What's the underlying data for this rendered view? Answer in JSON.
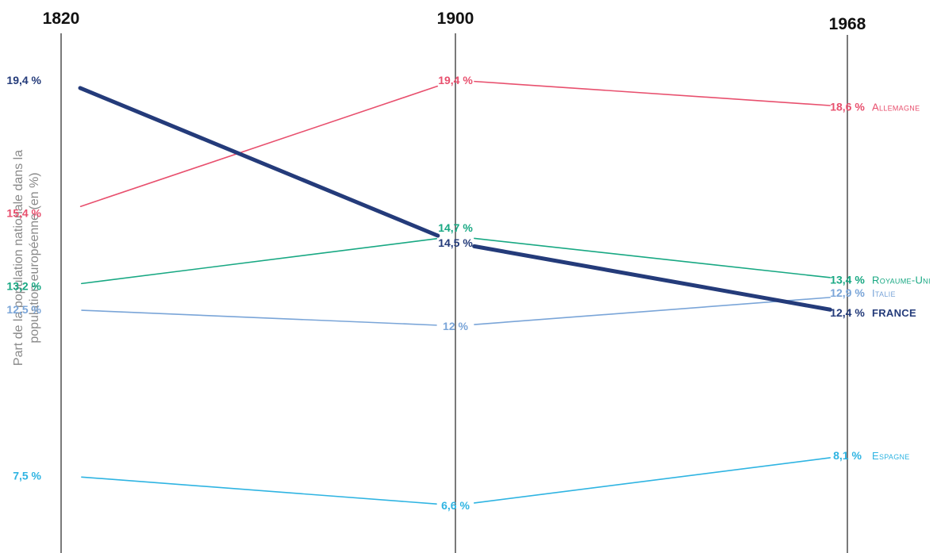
{
  "chart_data": {
    "type": "line",
    "title": "",
    "xlabel": "",
    "ylabel_lines": [
      "Part de la population nationale dans la",
      "population européenne (en %)"
    ],
    "x": [
      "1820",
      "1900",
      "1968"
    ],
    "ylim": [
      5.0,
      20.3
    ],
    "grid": false,
    "series": [
      {
        "name": "Allemagne",
        "label": "Allemagne",
        "color": "#e8506e",
        "width": 1.6,
        "values": [
          15.4,
          19.4,
          18.6
        ],
        "labels": [
          "15,4 %",
          "19,4 %",
          "18,6 %"
        ]
      },
      {
        "name": "France",
        "label": "France",
        "color": "#243b7a",
        "width": 5,
        "bold": true,
        "values": [
          19.4,
          14.5,
          12.4
        ],
        "labels": [
          "19,4 %",
          "14,5 %",
          "12,4 %"
        ]
      },
      {
        "name": "Royaume-Uni",
        "label": "Royaume-Uni",
        "color": "#18a883",
        "width": 1.6,
        "values": [
          13.2,
          14.7,
          13.4
        ],
        "labels": [
          "13,2 %",
          "14,7 %",
          "13,4 %"
        ]
      },
      {
        "name": "Italie",
        "label": "Italie",
        "color": "#7aa5d8",
        "width": 1.6,
        "values": [
          12.5,
          12.0,
          12.9
        ],
        "labels": [
          "12,5 %",
          "12 %",
          "12,9 %"
        ]
      },
      {
        "name": "Espagne",
        "label": "Espagne",
        "color": "#2fb4e2",
        "width": 1.6,
        "values": [
          7.5,
          6.6,
          8.1
        ],
        "labels": [
          "7,5 %",
          "6,6 %",
          "8,1 %"
        ]
      }
    ]
  }
}
